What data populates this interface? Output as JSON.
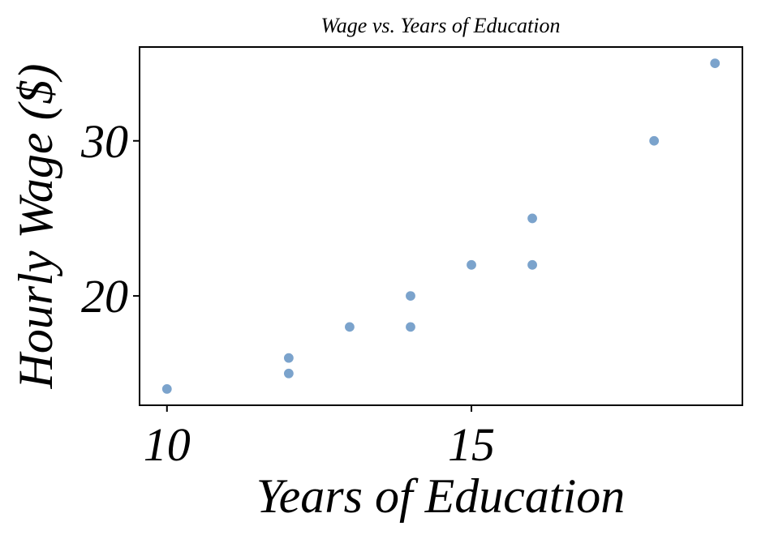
{
  "chart_data": {
    "type": "scatter",
    "title": "Wage vs. Years of Education",
    "xlabel": "Years of Education",
    "ylabel": "Hourly Wage ($)",
    "xlim": [
      9.55,
      19.45
    ],
    "ylim": [
      12.95,
      36.05
    ],
    "xticks": [
      10,
      15
    ],
    "yticks": [
      20,
      30
    ],
    "grid": false,
    "marker_color": "#7ba3cc",
    "points": [
      {
        "x": 10,
        "y": 14
      },
      {
        "x": 12,
        "y": 16
      },
      {
        "x": 12,
        "y": 15
      },
      {
        "x": 13,
        "y": 18
      },
      {
        "x": 14,
        "y": 20
      },
      {
        "x": 14,
        "y": 18
      },
      {
        "x": 15,
        "y": 22
      },
      {
        "x": 16,
        "y": 25
      },
      {
        "x": 16,
        "y": 22
      },
      {
        "x": 18,
        "y": 30
      },
      {
        "x": 19,
        "y": 35
      }
    ]
  }
}
